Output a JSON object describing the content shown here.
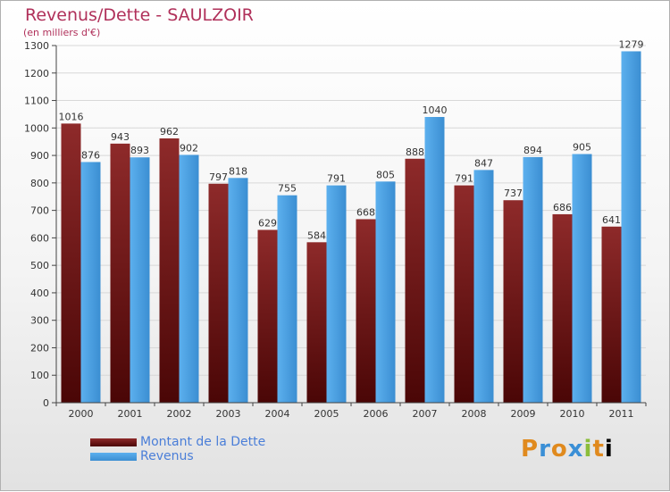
{
  "title": "Revenus/Dette - SAULZOIR",
  "subtitle": "(en milliers d'€)",
  "logo_text": "Proxiti",
  "colors": {
    "dette": "#7a1e1e",
    "revenus": "#4aa0e0",
    "title": "#b0305a",
    "legend_text": "#4a7ed8"
  },
  "chart_data": {
    "type": "bar",
    "categories": [
      "2000",
      "2001",
      "2002",
      "2003",
      "2004",
      "2005",
      "2006",
      "2007",
      "2008",
      "2009",
      "2010",
      "2011"
    ],
    "series": [
      {
        "name": "Montant de la Dette",
        "values": [
          1016,
          943,
          962,
          797,
          629,
          584,
          668,
          888,
          791,
          737,
          686,
          641
        ]
      },
      {
        "name": "Revenus",
        "values": [
          876,
          893,
          902,
          818,
          755,
          791,
          805,
          1040,
          847,
          894,
          905,
          1279
        ]
      }
    ],
    "ylim": [
      0,
      1300
    ],
    "yticks": [
      0,
      100,
      200,
      300,
      400,
      500,
      600,
      700,
      800,
      900,
      1000,
      1100,
      1200,
      1300
    ],
    "grid": true,
    "legend_position": "bottom-left"
  }
}
